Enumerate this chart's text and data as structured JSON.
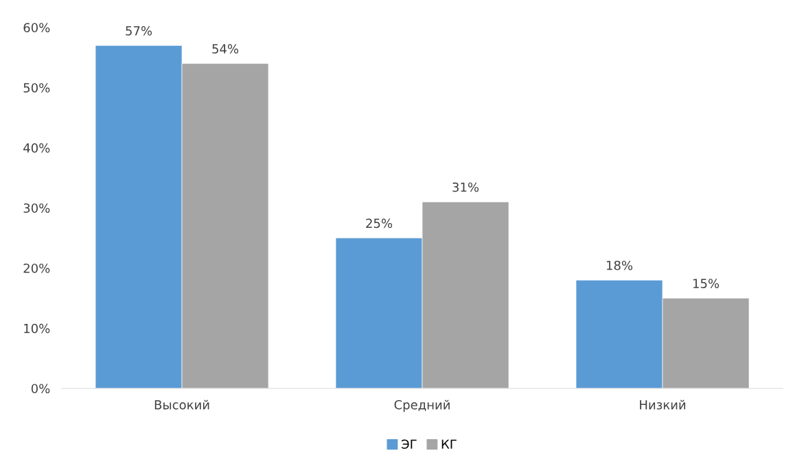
{
  "chart_data": {
    "type": "bar",
    "categories": [
      "Высокий",
      "Средний",
      "Низкий"
    ],
    "series": [
      {
        "name": "ЭГ",
        "color": "#5b9bd5",
        "values": [
          57,
          25,
          18
        ],
        "value_labels": [
          "57%",
          "25%",
          "18%"
        ]
      },
      {
        "name": "КГ",
        "color": "#a5a5a5",
        "values": [
          54,
          31,
          15
        ],
        "value_labels": [
          "54%",
          "31%",
          "15%"
        ]
      }
    ],
    "ylim": [
      0,
      60
    ],
    "yticks": [
      {
        "value": 0,
        "label": "0%"
      },
      {
        "value": 10,
        "label": "10%"
      },
      {
        "value": 20,
        "label": "20%"
      },
      {
        "value": 30,
        "label": "30%"
      },
      {
        "value": 40,
        "label": "40%"
      },
      {
        "value": 50,
        "label": "50%"
      },
      {
        "value": 60,
        "label": "60%"
      }
    ],
    "grid": false,
    "legend": "bottom"
  }
}
